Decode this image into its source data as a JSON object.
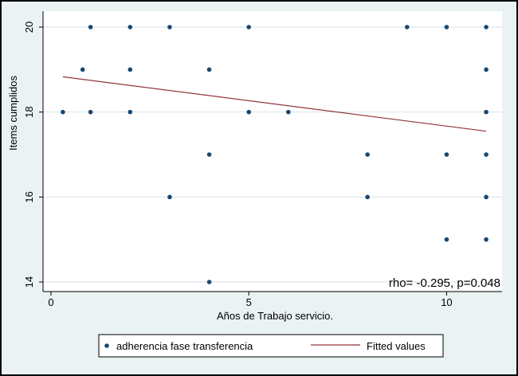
{
  "chart_data": {
    "type": "scatter",
    "title": "",
    "xlabel": "Años de Trabajo servicio.",
    "ylabel": "Items cumplidos",
    "xlim": [
      0,
      11.2
    ],
    "ylim": [
      14,
      20
    ],
    "x_ticks": [
      0,
      5,
      10
    ],
    "y_ticks": [
      14,
      16,
      18,
      20
    ],
    "grid": true,
    "legend_position": "bottom",
    "annotation": "rho= -0.295, p=0.048",
    "series": [
      {
        "name": "adherencia fase transferencia",
        "kind": "scatter",
        "color": "#1a476f",
        "points": [
          [
            0.3,
            18
          ],
          [
            0.8,
            19
          ],
          [
            1,
            20
          ],
          [
            1,
            18
          ],
          [
            2,
            20
          ],
          [
            2,
            19
          ],
          [
            2,
            18
          ],
          [
            3,
            20
          ],
          [
            3,
            16
          ],
          [
            4,
            19
          ],
          [
            4,
            17
          ],
          [
            4,
            14
          ],
          [
            5,
            20
          ],
          [
            5,
            18
          ],
          [
            6,
            18
          ],
          [
            8,
            17
          ],
          [
            8,
            16
          ],
          [
            9,
            20
          ],
          [
            10,
            20
          ],
          [
            10,
            17
          ],
          [
            10,
            15
          ],
          [
            11,
            20
          ],
          [
            11,
            19
          ],
          [
            11,
            18
          ],
          [
            11,
            17
          ],
          [
            11,
            16
          ],
          [
            11,
            15
          ]
        ]
      },
      {
        "name": "Fitted values",
        "kind": "line",
        "color": "#90353b",
        "points": [
          [
            0.3,
            18.83
          ],
          [
            11,
            17.55
          ]
        ]
      }
    ]
  }
}
